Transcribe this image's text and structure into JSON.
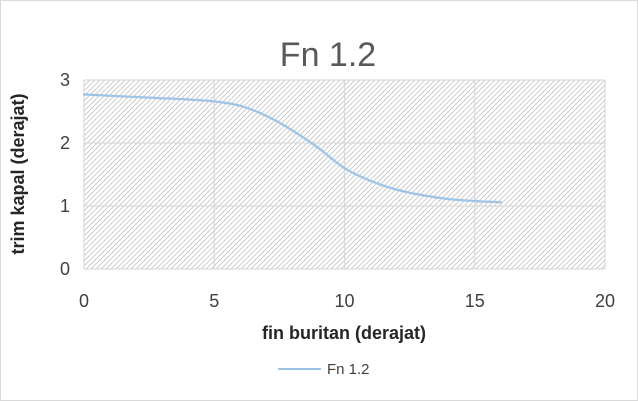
{
  "chart_data": {
    "type": "line",
    "title": "Fn 1.2",
    "xlabel": "fin buritan (derajat)",
    "ylabel": "trim kapal (derajat)",
    "xlim": [
      0,
      20
    ],
    "ylim": [
      0,
      3
    ],
    "xticks": [
      "0",
      "5",
      "10",
      "15",
      "20"
    ],
    "yticks": [
      "0",
      "1",
      "2",
      "3"
    ],
    "grid": true,
    "legend_position": "bottom",
    "series": [
      {
        "name": "Fn 1.2",
        "color": "#9dc3e6",
        "x": [
          0,
          1,
          2,
          3,
          4,
          5,
          6,
          7,
          8,
          9,
          10,
          11,
          12,
          13,
          14,
          15,
          16
        ],
        "y": [
          2.77,
          2.75,
          2.73,
          2.71,
          2.69,
          2.66,
          2.59,
          2.43,
          2.2,
          1.92,
          1.6,
          1.4,
          1.26,
          1.17,
          1.11,
          1.08,
          1.06
        ]
      }
    ]
  }
}
